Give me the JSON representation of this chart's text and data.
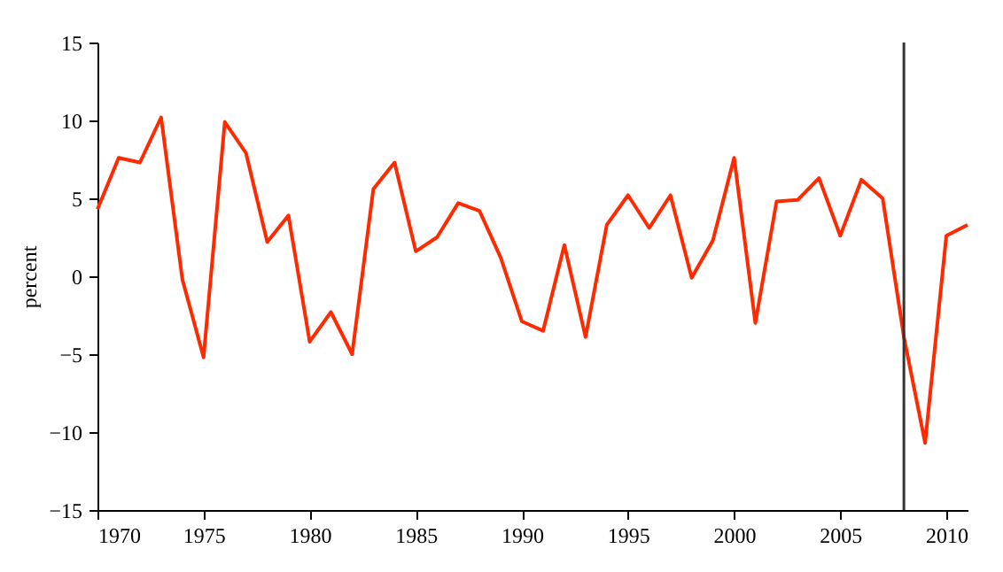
{
  "chart_data": {
    "type": "line",
    "ylabel": "percent",
    "x": [
      1970,
      1971,
      1972,
      1973,
      1974,
      1975,
      1976,
      1977,
      1978,
      1979,
      1980,
      1981,
      1982,
      1983,
      1984,
      1985,
      1986,
      1987,
      1988,
      1989,
      1990,
      1991,
      1992,
      1993,
      1994,
      1995,
      1996,
      1997,
      1998,
      1999,
      2000,
      2001,
      2002,
      2003,
      2004,
      2005,
      2006,
      2007,
      2008,
      2009,
      2010,
      2011
    ],
    "series": [
      {
        "color": "#ff2a00",
        "values": [
          4.3,
          7.6,
          7.3,
          10.2,
          -0.2,
          -5.2,
          9.9,
          7.9,
          2.2,
          3.9,
          -4.2,
          -2.3,
          -5.0,
          5.6,
          7.3,
          1.6,
          2.5,
          4.7,
          4.2,
          1.2,
          -2.9,
          -3.5,
          2.0,
          -3.9,
          3.3,
          5.2,
          3.1,
          5.2,
          -0.1,
          2.3,
          7.6,
          -3.0,
          4.8,
          4.9,
          6.3,
          2.6,
          6.2,
          5.0,
          -3.9,
          -10.7,
          2.6,
          3.3
        ]
      }
    ],
    "xlim": [
      1970,
      2011
    ],
    "xticks": [
      1970,
      1975,
      1980,
      1985,
      1990,
      1995,
      2000,
      2005,
      2010
    ],
    "ylim": [
      -15,
      15
    ],
    "yticks": [
      -15,
      -10,
      -5,
      0,
      5,
      10,
      15
    ],
    "ref_lines": [
      {
        "axis": "x",
        "value": 2008,
        "color": "#333333"
      }
    ],
    "grid": false,
    "legend": false,
    "marker": "none",
    "line_style": "solid"
  }
}
